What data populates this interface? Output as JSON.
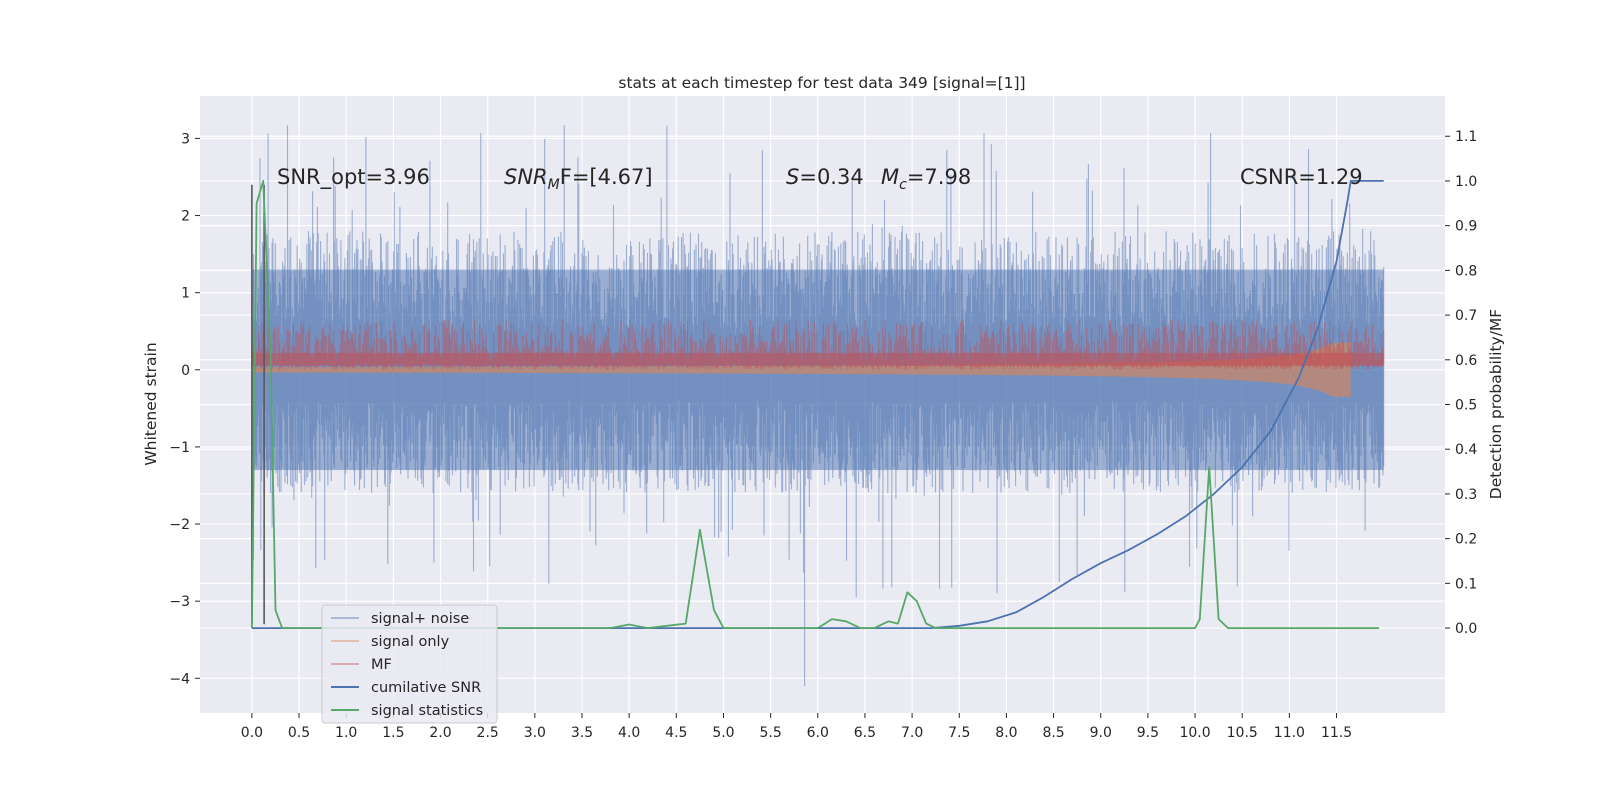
{
  "chart_data": {
    "type": "line",
    "title": "stats at each timestep for test data 349 [signal=[1]]",
    "xlabel": "",
    "ylabel": "Whitened strain",
    "ylabel_right": "Detection probability/MF",
    "xlim": [
      -0.55,
      12.65
    ],
    "ylim": [
      -4.45,
      3.55
    ],
    "ylim_right": [
      -0.19,
      1.19
    ],
    "x_ticks": [
      "0.0",
      "0.5",
      "1.0",
      "1.5",
      "2.0",
      "2.5",
      "3.0",
      "3.5",
      "4.0",
      "4.5",
      "5.0",
      "5.5",
      "6.0",
      "6.5",
      "7.0",
      "7.5",
      "8.0",
      "8.5",
      "9.0",
      "9.5",
      "10.0",
      "10.5",
      "11.0",
      "11.5"
    ],
    "y_ticks": [
      "3",
      "2",
      "1",
      "0",
      "−1",
      "−2",
      "−3",
      "−4"
    ],
    "y_ticks_right": [
      "1.1",
      "1.0",
      "0.9",
      "0.8",
      "0.7",
      "0.6",
      "0.5",
      "0.4",
      "0.3",
      "0.2",
      "0.1",
      "0.0"
    ],
    "grid": true,
    "legend_position": "lower-left",
    "annotations": {
      "snr_opt": "SNR_opt=3.96",
      "snr_mf_sym": "SNR",
      "snr_mf_sub": "M",
      "snr_mf_rest": "F=[4.67]",
      "s_sym": "S",
      "s_val": "=0.34",
      "mc_sym": "M",
      "mc_sub": "c",
      "mc_val": "=7.98",
      "csnr": "CSNR=1.29"
    },
    "series": [
      {
        "name": "signal+ noise",
        "color": "#4c72b0",
        "axis": "left",
        "style": "noise",
        "x_range": [
          0.0,
          12.0
        ],
        "range_typical": [
          -1.6,
          1.8
        ],
        "range_extreme": [
          -4.1,
          3.2
        ]
      },
      {
        "name": "signal only",
        "color": "#dd8452",
        "axis": "left",
        "style": "chirp_band",
        "x_range": [
          0.0,
          11.65
        ],
        "band_max": 0.35
      },
      {
        "name": "MF",
        "color": "#c44e52",
        "axis": "left",
        "style": "noise_band",
        "x_range": [
          0.0,
          12.0
        ],
        "range": [
          0.0,
          0.65
        ]
      },
      {
        "name": "cumilative SNR",
        "color": "#4c72b0",
        "axis": "right",
        "points": [
          [
            0.0,
            0.0
          ],
          [
            7.2,
            0.0
          ],
          [
            7.5,
            0.005
          ],
          [
            7.8,
            0.015
          ],
          [
            8.1,
            0.035
          ],
          [
            8.4,
            0.07
          ],
          [
            8.7,
            0.11
          ],
          [
            9.0,
            0.145
          ],
          [
            9.3,
            0.175
          ],
          [
            9.6,
            0.21
          ],
          [
            9.9,
            0.25
          ],
          [
            10.2,
            0.3
          ],
          [
            10.5,
            0.36
          ],
          [
            10.8,
            0.44
          ],
          [
            11.1,
            0.56
          ],
          [
            11.3,
            0.67
          ],
          [
            11.5,
            0.82
          ],
          [
            11.62,
            0.96
          ],
          [
            11.65,
            1.0
          ],
          [
            12.0,
            1.0
          ]
        ]
      },
      {
        "name": "signal statistics",
        "color": "#55a868",
        "axis": "right",
        "points": [
          [
            0.0,
            0.0
          ],
          [
            0.05,
            0.95
          ],
          [
            0.12,
            1.0
          ],
          [
            0.2,
            0.6
          ],
          [
            0.25,
            0.04
          ],
          [
            0.32,
            0.0
          ],
          [
            3.8,
            0.0
          ],
          [
            4.0,
            0.008
          ],
          [
            4.2,
            0.0
          ],
          [
            4.4,
            0.005
          ],
          [
            4.6,
            0.01
          ],
          [
            4.75,
            0.22
          ],
          [
            4.9,
            0.04
          ],
          [
            5.0,
            0.0
          ],
          [
            6.0,
            0.0
          ],
          [
            6.15,
            0.02
          ],
          [
            6.3,
            0.015
          ],
          [
            6.45,
            0.0
          ],
          [
            6.6,
            0.0
          ],
          [
            6.75,
            0.015
          ],
          [
            6.85,
            0.01
          ],
          [
            6.95,
            0.08
          ],
          [
            7.05,
            0.06
          ],
          [
            7.15,
            0.01
          ],
          [
            7.25,
            0.0
          ],
          [
            10.0,
            0.0
          ],
          [
            10.05,
            0.02
          ],
          [
            10.15,
            0.36
          ],
          [
            10.25,
            0.02
          ],
          [
            10.35,
            0.0
          ],
          [
            11.95,
            0.0
          ]
        ]
      }
    ]
  },
  "legend": [
    {
      "label": "signal+ noise",
      "color": "#4c72b0",
      "alpha": 0.55,
      "width": 1.5
    },
    {
      "label": "signal only",
      "color": "#dd8452",
      "alpha": 0.55,
      "width": 1.5
    },
    {
      "label": "MF",
      "color": "#c44e52",
      "alpha": 0.55,
      "width": 1.5
    },
    {
      "label": "cumilative SNR",
      "color": "#4c72b0",
      "alpha": 1,
      "width": 2
    },
    {
      "label": "signal statistics",
      "color": "#55a868",
      "alpha": 1,
      "width": 2
    }
  ],
  "colors": {
    "plot_bg": "#eaeaf2",
    "grid": "#ffffff",
    "text": "#262626",
    "spike": "#595959"
  }
}
